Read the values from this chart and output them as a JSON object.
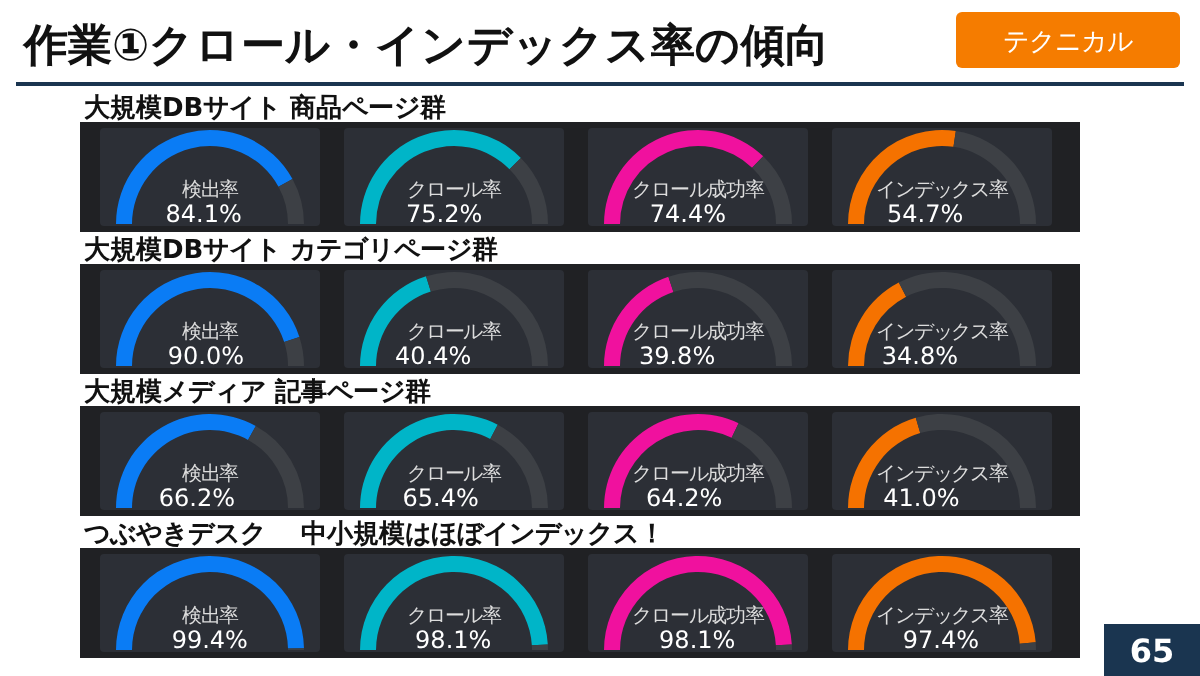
{
  "chart_data": [
    {
      "type": "other",
      "title": "作業①クロール・インデックス率の傾向",
      "annotations": [
        "テクニカル",
        "65"
      ]
    },
    {
      "type": "other",
      "title": "大規模DBサイト 商品ページ群"
    },
    {
      "type": "donut",
      "title": "検出率",
      "categories": [
        null,
        null
      ],
      "values": [
        84.1,
        15.9
      ],
      "colors": [
        "#0a7cf5",
        "#3d4045"
      ],
      "value_labels": [
        "84.1%",
        null
      ]
    },
    {
      "type": "donut",
      "title": "クロール率",
      "categories": [
        null,
        null
      ],
      "values": [
        75.2,
        24.8
      ],
      "colors": [
        "#00b5c8",
        "#3d4045"
      ],
      "value_labels": [
        "75.2%",
        null
      ]
    },
    {
      "type": "donut",
      "title": "クロール成功率",
      "categories": [
        null,
        null
      ],
      "values": [
        74.4,
        25.6
      ],
      "colors": [
        "#f0119e",
        "#3d4045"
      ],
      "value_labels": [
        "74.4%",
        null
      ]
    },
    {
      "type": "donut",
      "title": "インデックス率",
      "categories": [
        null,
        null
      ],
      "values": [
        54.7,
        45.3
      ],
      "colors": [
        "#f57200",
        "#3d4045"
      ],
      "value_labels": [
        "54.7%",
        null
      ]
    },
    {
      "type": "other",
      "title": "大規模DBサイト カテゴリページ群"
    },
    {
      "type": "donut",
      "title": "検出率",
      "categories": [
        null,
        null
      ],
      "values": [
        90.0,
        10.0
      ],
      "colors": [
        "#0a7cf5",
        "#3d4045"
      ],
      "value_labels": [
        "90.0%",
        null
      ]
    },
    {
      "type": "donut",
      "title": "クロール率",
      "categories": [
        null,
        null
      ],
      "values": [
        40.4,
        59.6
      ],
      "colors": [
        "#00b5c8",
        "#3d4045"
      ],
      "value_labels": [
        "40.4%",
        null
      ]
    },
    {
      "type": "donut",
      "title": "クロール成功率",
      "categories": [
        null,
        null
      ],
      "values": [
        39.8,
        60.2
      ],
      "colors": [
        "#f0119e",
        "#3d4045"
      ],
      "value_labels": [
        "39.8%",
        null
      ]
    },
    {
      "type": "donut",
      "title": "インデックス率",
      "categories": [
        null,
        null
      ],
      "values": [
        34.8,
        65.2
      ],
      "colors": [
        "#f57200",
        "#3d4045"
      ],
      "value_labels": [
        "34.8%",
        null
      ]
    },
    {
      "type": "other",
      "title": "大規模メディア 記事ページ群"
    },
    {
      "type": "donut",
      "title": "検出率",
      "categories": [
        null,
        null
      ],
      "values": [
        66.2,
        33.8
      ],
      "colors": [
        "#0a7cf5",
        "#3d4045"
      ],
      "value_labels": [
        "66.2%",
        null
      ]
    },
    {
      "type": "donut",
      "title": "クロール率",
      "categories": [
        null,
        null
      ],
      "values": [
        65.4,
        34.6
      ],
      "colors": [
        "#00b5c8",
        "#3d4045"
      ],
      "value_labels": [
        "65.4%",
        null
      ]
    },
    {
      "type": "donut",
      "title": "クロール成功率",
      "categories": [
        null,
        null
      ],
      "values": [
        64.2,
        35.8
      ],
      "colors": [
        "#f0119e",
        "#3d4045"
      ],
      "value_labels": [
        "64.2%",
        null
      ]
    },
    {
      "type": "donut",
      "title": "インデックス率",
      "categories": [
        null,
        null
      ],
      "values": [
        41.0,
        59.0
      ],
      "colors": [
        "#f57200",
        "#3d4045"
      ],
      "value_labels": [
        "41.0%",
        null
      ]
    },
    {
      "type": "other",
      "title": "つぶやきデスク　 中小規模はほぼインデックス！"
    },
    {
      "type": "donut",
      "title": "検出率",
      "categories": [
        null,
        null
      ],
      "values": [
        99.4,
        0.6
      ],
      "colors": [
        "#0a7cf5",
        "#3d4045"
      ],
      "value_labels": [
        "99.4%",
        null
      ]
    },
    {
      "type": "donut",
      "title": "クロール率",
      "categories": [
        null,
        null
      ],
      "values": [
        98.1,
        1.9
      ],
      "colors": [
        "#00b5c8",
        "#3d4045"
      ],
      "value_labels": [
        "98.1%",
        null
      ]
    },
    {
      "type": "donut",
      "title": "クロール成功率",
      "categories": [
        null,
        null
      ],
      "values": [
        98.1,
        1.9
      ],
      "colors": [
        "#f0119e",
        "#3d4045"
      ],
      "value_labels": [
        "98.1%",
        null
      ]
    },
    {
      "type": "donut",
      "title": "インデックス率",
      "categories": [
        null,
        null
      ],
      "values": [
        97.4,
        2.6
      ],
      "colors": [
        "#f57200",
        "#3d4045"
      ],
      "value_labels": [
        "97.4%",
        null
      ]
    }
  ]
}
